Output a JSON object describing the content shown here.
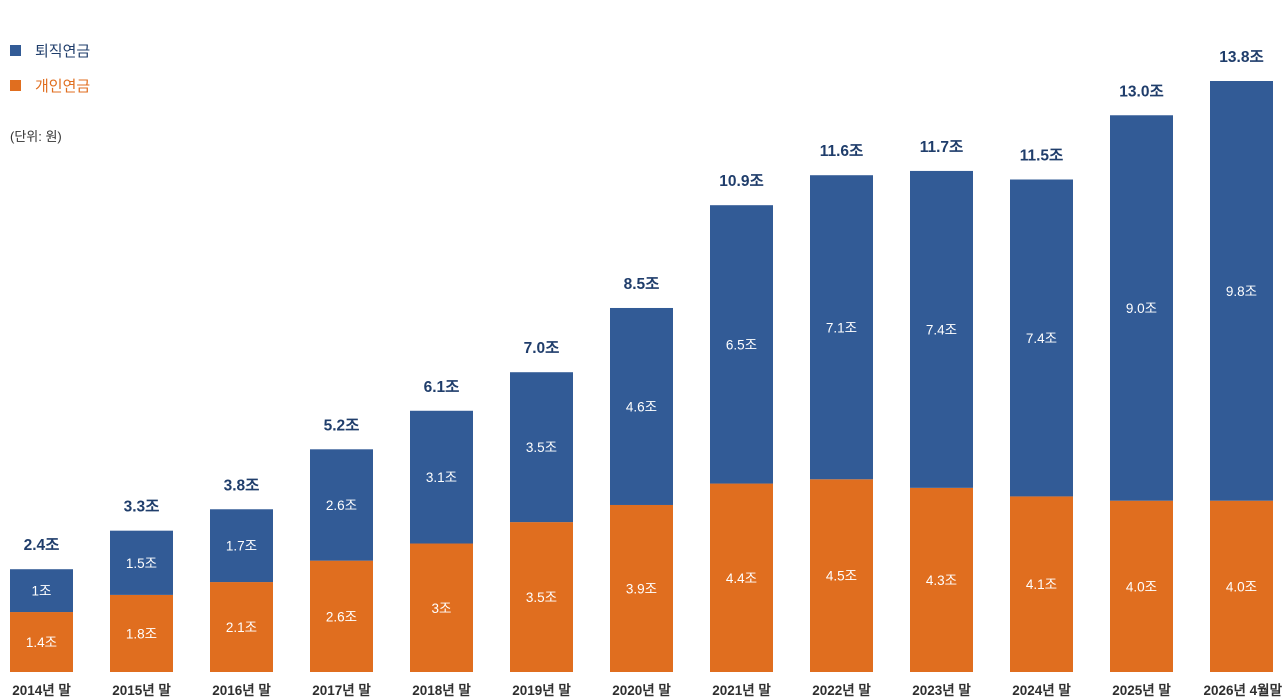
{
  "legend": {
    "retirement": "퇴직연금",
    "personal": "개인연금"
  },
  "unit_note": "(단위: 원)",
  "colors": {
    "retirement": "#325B96",
    "personal": "#E06E1F",
    "total_text": "#1F3D6B"
  },
  "chart_data": {
    "type": "bar",
    "stacked": true,
    "categories": [
      "2014년 말",
      "2015년 말",
      "2016년 말",
      "2017년 말",
      "2018년 말",
      "2019년 말",
      "2020년 말",
      "2021년 말",
      "2022년 말",
      "2023년 말",
      "2024년 말",
      "2025년 말",
      "2026년 4월말"
    ],
    "series": [
      {
        "name": "개인연금",
        "values": [
          1.4,
          1.8,
          2.1,
          2.6,
          3,
          3.5,
          3.9,
          4.4,
          4.5,
          4.3,
          4.1,
          4.0,
          4.0
        ],
        "labels": [
          "1.4조",
          "1.8조",
          "2.1조",
          "2.6조",
          "3조",
          "3.5조",
          "3.9조",
          "4.4조",
          "4.5조",
          "4.3조",
          "4.1조",
          "4.0조",
          "4.0조"
        ]
      },
      {
        "name": "퇴직연금",
        "values": [
          1,
          1.5,
          1.7,
          2.6,
          3.1,
          3.5,
          4.6,
          6.5,
          7.1,
          7.4,
          7.4,
          9.0,
          9.8
        ],
        "labels": [
          "1조",
          "1.5조",
          "1.7조",
          "2.6조",
          "3.1조",
          "3.5조",
          "4.6조",
          "6.5조",
          "7.1조",
          "7.4조",
          "7.4조",
          "9.0조",
          "9.8조"
        ]
      }
    ],
    "totals": [
      2.4,
      3.3,
      3.8,
      5.2,
      6.1,
      7.0,
      8.5,
      10.9,
      11.6,
      11.7,
      11.5,
      13.0,
      13.8
    ],
    "total_labels": [
      "2.4조",
      "3.3조",
      "3.8조",
      "5.2조",
      "6.1조",
      "7.0조",
      "8.5조",
      "10.9조",
      "11.6조",
      "11.7조",
      "11.5조",
      "13.0조",
      "13.8조"
    ],
    "ylim": [
      0,
      13.8
    ],
    "grid": false,
    "legend_position": "top-left"
  }
}
